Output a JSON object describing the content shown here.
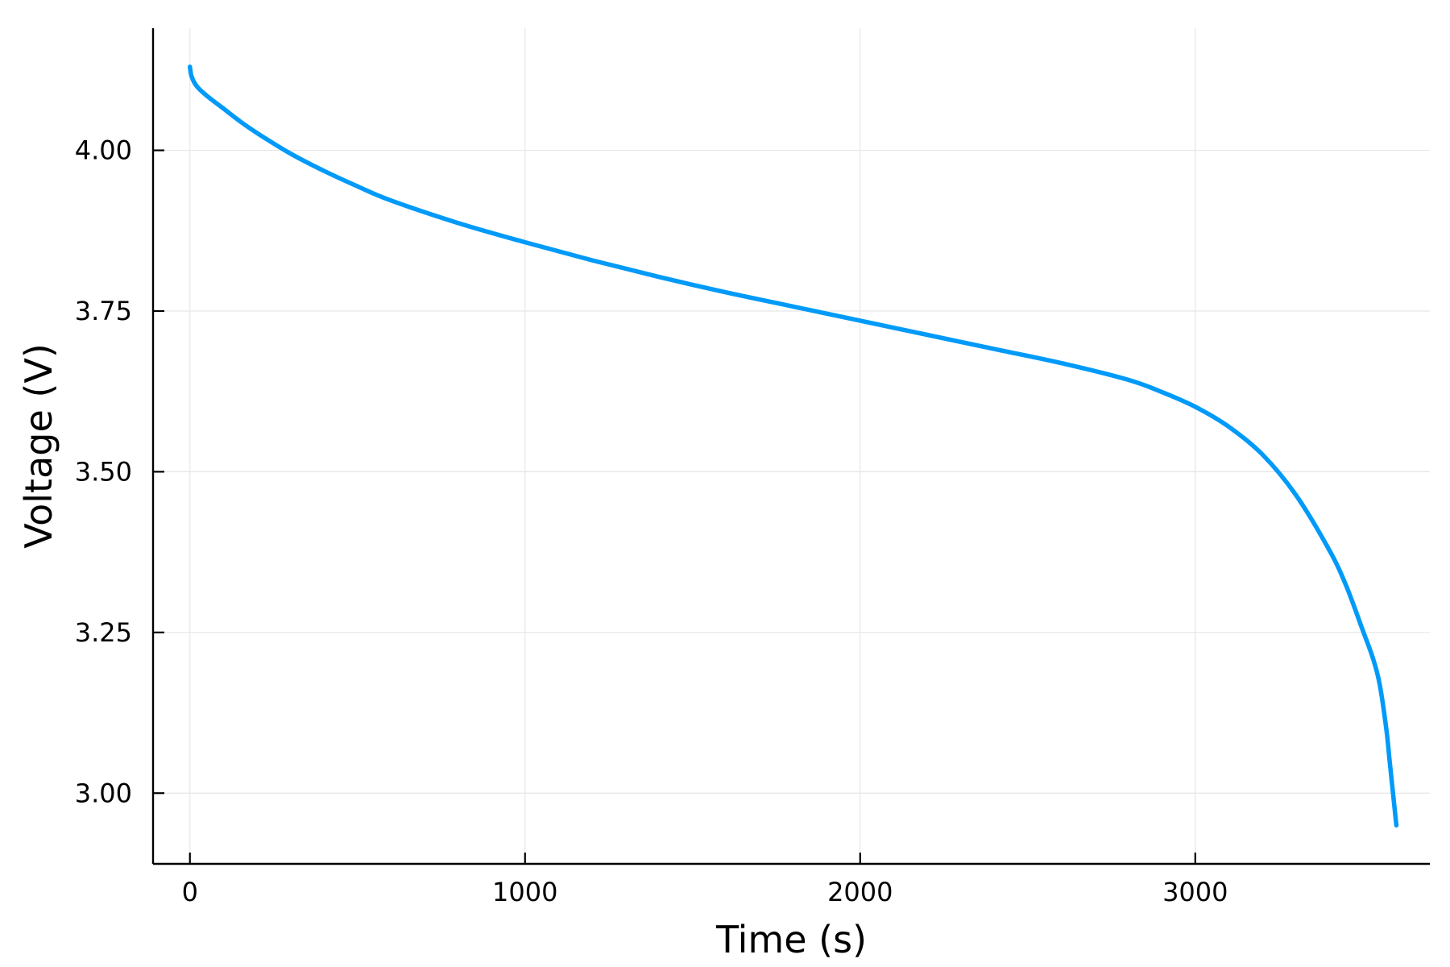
{
  "chart_data": {
    "type": "line",
    "title": "",
    "xlabel": "Time (s)",
    "ylabel": "Voltage (V)",
    "xlim": [
      -110,
      3700
    ],
    "ylim": [
      2.89,
      4.19
    ],
    "xticks": [
      0,
      1000,
      2000,
      3000
    ],
    "xtick_labels": [
      "0",
      "1000",
      "2000",
      "3000"
    ],
    "yticks": [
      3.0,
      3.25,
      3.5,
      3.75,
      4.0
    ],
    "ytick_labels": [
      "3.00",
      "3.25",
      "3.50",
      "3.75",
      "4.00"
    ],
    "grid": true,
    "legend": "none",
    "series": [
      {
        "color": "#009af9",
        "x": [
          0,
          5,
          20,
          50,
          100,
          150,
          200,
          300,
          400,
          500,
          600,
          800,
          1000,
          1200,
          1400,
          1600,
          1800,
          2000,
          2200,
          2400,
          2600,
          2800,
          2900,
          3000,
          3100,
          3200,
          3300,
          3400,
          3450,
          3500,
          3530,
          3550,
          3570,
          3580,
          3590,
          3600
        ],
        "y": [
          4.13,
          4.115,
          4.1,
          4.085,
          4.065,
          4.045,
          4.027,
          3.995,
          3.968,
          3.944,
          3.922,
          3.887,
          3.857,
          3.829,
          3.803,
          3.779,
          3.757,
          3.735,
          3.713,
          3.691,
          3.669,
          3.643,
          3.624,
          3.601,
          3.57,
          3.527,
          3.464,
          3.378,
          3.323,
          3.253,
          3.21,
          3.17,
          3.1,
          3.05,
          3.0,
          2.95
        ]
      }
    ]
  }
}
